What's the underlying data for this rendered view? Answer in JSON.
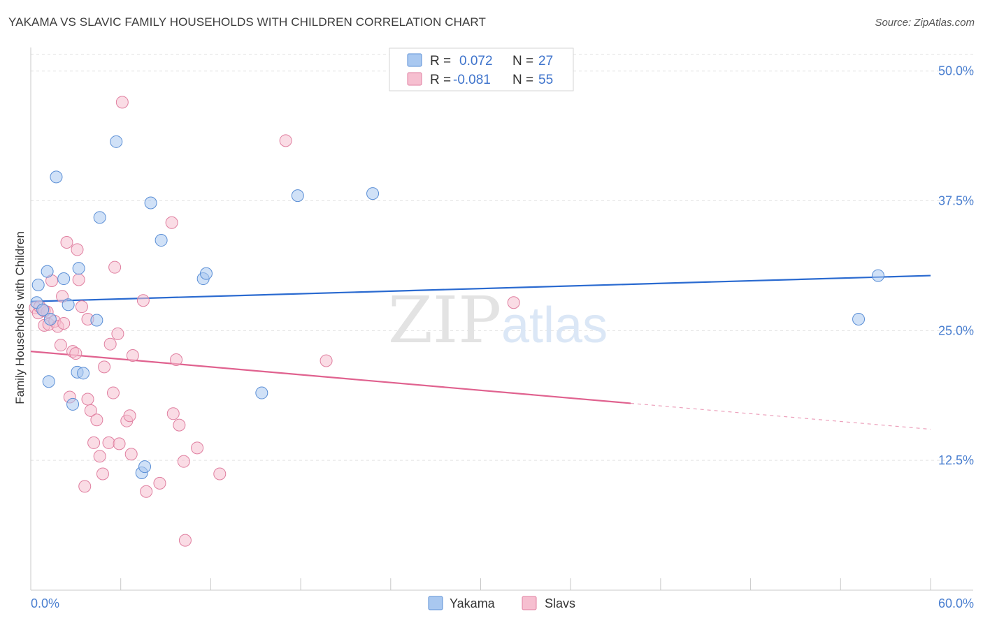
{
  "title": "YAKAMA VS SLAVIC FAMILY HOUSEHOLDS WITH CHILDREN CORRELATION CHART",
  "source": "Source: ZipAtlas.com",
  "watermark": {
    "zip": "ZIP",
    "atlas": "atlas"
  },
  "legend": {
    "r_label": "R =",
    "n_label": "N =",
    "rows": [
      {
        "name": "Yakama",
        "r": "0.072",
        "n": "27",
        "color": "#a9c8f0",
        "stroke": "#5b8fd6"
      },
      {
        "name": "Slavs",
        "r": "-0.081",
        "n": "55",
        "color": "#f6bfd0",
        "stroke": "#e07fa0"
      }
    ]
  },
  "chart_data": {
    "type": "scatter",
    "xlabel": "",
    "ylabel": "Family Households with Children",
    "xlim": [
      0,
      60
    ],
    "ylim": [
      0,
      52
    ],
    "x_tick_labels": [
      {
        "value": 0,
        "label": "0.0%"
      },
      {
        "value": 60,
        "label": "60.0%"
      }
    ],
    "y_tick_labels": [
      {
        "value": 12.5,
        "label": "12.5%"
      },
      {
        "value": 25,
        "label": "25.0%"
      },
      {
        "value": 37.5,
        "label": "37.5%"
      },
      {
        "value": 50,
        "label": "50.0%"
      }
    ],
    "x_minor_ticks": [
      0,
      6,
      12,
      18,
      24,
      30,
      36,
      42,
      48,
      54,
      60
    ],
    "series": [
      {
        "name": "Yakama",
        "color": "#a9c8f0",
        "stroke": "#5b8fd6",
        "trend_color": "#2a6ad0",
        "trend": {
          "x0": 0,
          "y0": 27.8,
          "x1": 60,
          "y1": 30.3,
          "solid_to": 60
        },
        "points": [
          [
            0.4,
            27.7
          ],
          [
            0.5,
            29.4
          ],
          [
            1.1,
            30.7
          ],
          [
            1.3,
            26.1
          ],
          [
            1.2,
            20.1
          ],
          [
            1.7,
            39.8
          ],
          [
            2.2,
            30.0
          ],
          [
            2.5,
            27.5
          ],
          [
            2.8,
            17.9
          ],
          [
            3.1,
            21.0
          ],
          [
            3.2,
            31.0
          ],
          [
            3.5,
            20.9
          ],
          [
            4.4,
            26.0
          ],
          [
            4.6,
            35.9
          ],
          [
            5.7,
            43.2
          ],
          [
            7.4,
            11.3
          ],
          [
            7.6,
            11.9
          ],
          [
            8.0,
            37.3
          ],
          [
            8.7,
            33.7
          ],
          [
            11.5,
            30.0
          ],
          [
            11.7,
            30.5
          ],
          [
            15.4,
            19.0
          ],
          [
            17.8,
            38.0
          ],
          [
            22.8,
            38.2
          ],
          [
            56.5,
            30.3
          ],
          [
            55.2,
            26.1
          ],
          [
            0.8,
            27.0
          ]
        ]
      },
      {
        "name": "Slavs",
        "color": "#f6bfd0",
        "stroke": "#e07fa0",
        "trend_color": "#e0628f",
        "trend": {
          "x0": 0,
          "y0": 23.0,
          "x1": 60,
          "y1": 15.5,
          "solid_to": 40
        },
        "points": [
          [
            0.3,
            27.2
          ],
          [
            0.5,
            26.7
          ],
          [
            0.6,
            27.3
          ],
          [
            0.8,
            27.0
          ],
          [
            0.9,
            25.5
          ],
          [
            1.1,
            26.8
          ],
          [
            1.2,
            25.6
          ],
          [
            1.4,
            29.8
          ],
          [
            1.6,
            25.9
          ],
          [
            1.8,
            25.4
          ],
          [
            2.0,
            23.6
          ],
          [
            2.1,
            28.3
          ],
          [
            2.2,
            25.7
          ],
          [
            2.4,
            33.5
          ],
          [
            2.6,
            18.6
          ],
          [
            2.8,
            23.0
          ],
          [
            3.0,
            22.8
          ],
          [
            3.1,
            32.8
          ],
          [
            3.2,
            29.9
          ],
          [
            3.4,
            27.3
          ],
          [
            3.6,
            10.0
          ],
          [
            3.8,
            26.1
          ],
          [
            3.8,
            18.4
          ],
          [
            4.0,
            17.3
          ],
          [
            4.2,
            14.2
          ],
          [
            4.4,
            16.4
          ],
          [
            4.6,
            12.9
          ],
          [
            4.8,
            11.2
          ],
          [
            4.9,
            21.5
          ],
          [
            5.2,
            14.2
          ],
          [
            5.3,
            23.7
          ],
          [
            5.5,
            19.0
          ],
          [
            5.6,
            31.1
          ],
          [
            5.8,
            24.7
          ],
          [
            5.9,
            14.1
          ],
          [
            6.1,
            47.0
          ],
          [
            6.4,
            16.3
          ],
          [
            6.6,
            16.8
          ],
          [
            6.7,
            13.1
          ],
          [
            6.8,
            22.6
          ],
          [
            7.5,
            27.9
          ],
          [
            7.7,
            9.5
          ],
          [
            8.6,
            10.3
          ],
          [
            9.4,
            35.4
          ],
          [
            9.5,
            17.0
          ],
          [
            9.7,
            22.2
          ],
          [
            9.9,
            15.9
          ],
          [
            10.2,
            12.4
          ],
          [
            10.3,
            4.8
          ],
          [
            11.1,
            13.7
          ],
          [
            12.6,
            11.2
          ],
          [
            17.0,
            43.3
          ],
          [
            19.7,
            22.1
          ],
          [
            32.2,
            27.7
          ],
          [
            0.9,
            26.9
          ]
        ]
      }
    ]
  }
}
